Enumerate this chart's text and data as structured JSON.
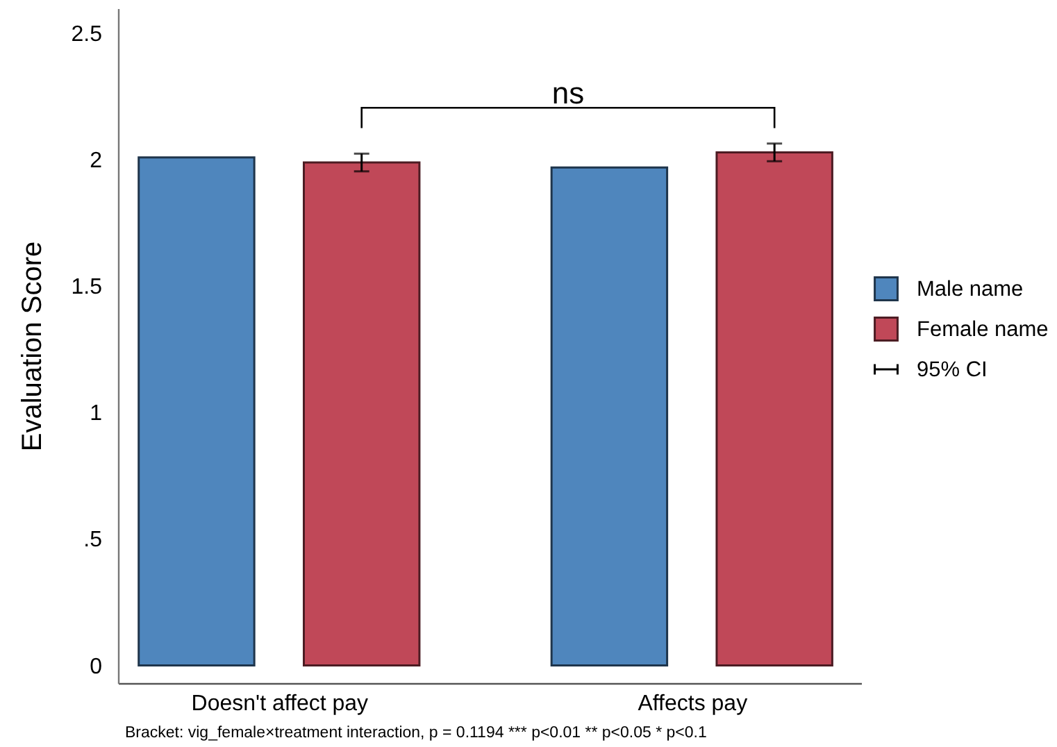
{
  "chart_data": {
    "type": "bar",
    "ylabel": "Evaluation Score",
    "categories": [
      "Doesn't affect pay",
      "Affects pay"
    ],
    "series": [
      {
        "name": "Male name",
        "color": "#4f86bd",
        "values": [
          2.01,
          1.97
        ]
      },
      {
        "name": "Female name",
        "color": "#c04858",
        "values": [
          1.99,
          2.03
        ],
        "errors": [
          [
            1.955,
            2.025
          ],
          [
            1.995,
            2.065
          ]
        ]
      }
    ],
    "ylim": [
      -0.07,
      2.6
    ],
    "yticks": [
      0,
      {
        "value": 0.5,
        "label": ".5"
      },
      1,
      1.5,
      2,
      2.5
    ],
    "grid": false,
    "legend": "right",
    "annotations": [
      "ns",
      "95% CI",
      "Bracket: vig_female×treatment interaction, p = 0.1194   *** p<0.01  ** p<0.05  * p<0.1"
    ]
  }
}
